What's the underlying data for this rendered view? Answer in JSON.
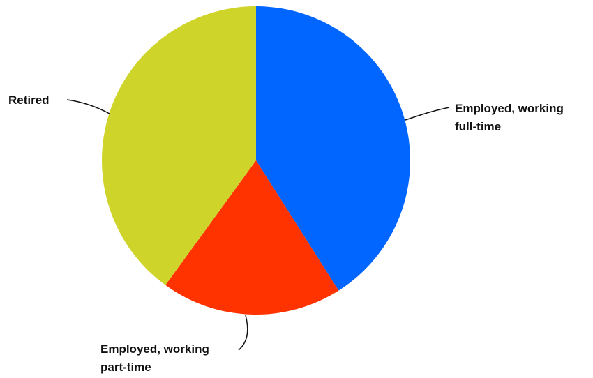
{
  "chart_data": {
    "type": "pie",
    "title": "",
    "start_angle_deg": 0,
    "direction": "clockwise",
    "slices": [
      {
        "label_lines": [
          "Employed, working",
          "full-time"
        ],
        "value": 41,
        "color": "#0066ff"
      },
      {
        "label_lines": [
          "Employed, working",
          "part-time"
        ],
        "value": 19,
        "color": "#ff3300"
      },
      {
        "label_lines": [
          "Retired"
        ],
        "value": 40,
        "color": "#cfd42a"
      }
    ]
  }
}
